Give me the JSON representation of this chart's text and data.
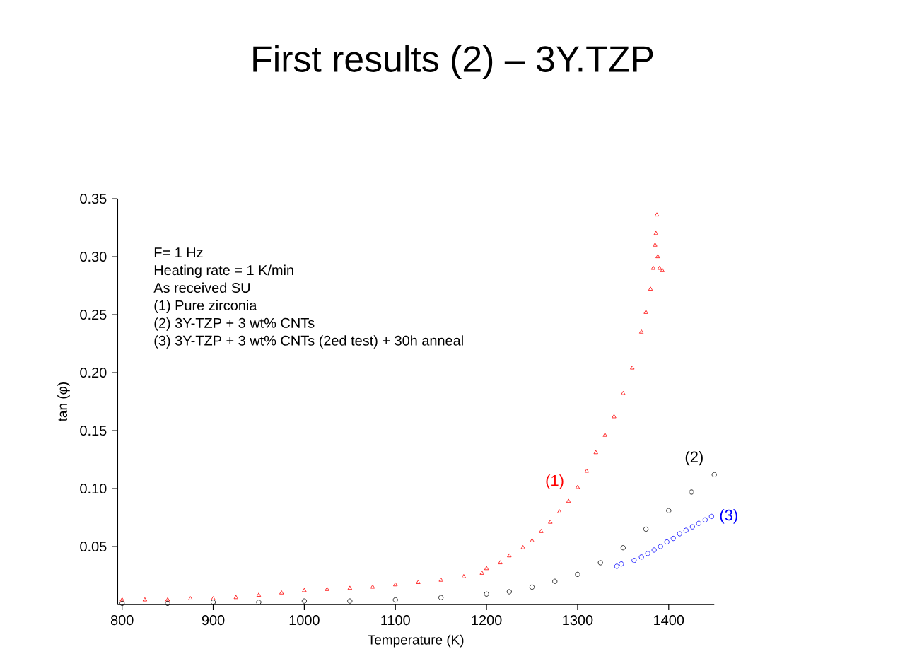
{
  "chart_data": {
    "type": "scatter",
    "title": "First results (2) – 3Y.TZP",
    "xlabel": "Temperature (K)",
    "ylabel": "tan (φ)",
    "xlim": [
      795,
      1450
    ],
    "ylim": [
      0,
      0.35
    ],
    "xticks": [
      800,
      900,
      1000,
      1100,
      1200,
      1300,
      1400
    ],
    "yticks": [
      0.05,
      {
        "value": 0.1,
        "label": "0.10"
      },
      0.15,
      {
        "value": 0.2,
        "label": "0.20"
      },
      0.25,
      {
        "value": 0.3,
        "label": "0.30"
      },
      0.35
    ],
    "grid": false,
    "legend": false,
    "marker": "circle",
    "annotations": [
      "F= 1 Hz",
      "Heating rate = 1 K/min",
      "As received SU",
      "(1) Pure zirconia",
      "(2) 3Y-TZP +  3 wt% CNTs",
      "(3) 3Y-TZP +  3 wt% CNTs (2ed test) + 30h anneal"
    ],
    "series": [
      {
        "name": "(1)",
        "color": "#ff0000",
        "marker": "triangle",
        "x": [
          800,
          825,
          850,
          875,
          900,
          925,
          950,
          975,
          1000,
          1025,
          1050,
          1075,
          1100,
          1125,
          1150,
          1175,
          1195,
          1200,
          1215,
          1225,
          1240,
          1250,
          1260,
          1270,
          1280,
          1290,
          1300,
          1310,
          1320,
          1330,
          1340,
          1350,
          1360,
          1370,
          1375,
          1380,
          1383,
          1385,
          1386,
          1387,
          1388,
          1390,
          1393
        ],
        "values": [
          0.004,
          0.004,
          0.004,
          0.005,
          0.005,
          0.006,
          0.008,
          0.01,
          0.012,
          0.013,
          0.014,
          0.015,
          0.017,
          0.019,
          0.021,
          0.024,
          0.027,
          0.031,
          0.036,
          0.042,
          0.049,
          0.055,
          0.063,
          0.071,
          0.08,
          0.089,
          0.101,
          0.115,
          0.131,
          0.146,
          0.162,
          0.182,
          0.204,
          0.235,
          0.252,
          0.272,
          0.29,
          0.31,
          0.32,
          0.336,
          0.3,
          0.29,
          0.288
        ]
      },
      {
        "name": "(2)",
        "color": "#000000",
        "x": [
          800,
          850,
          900,
          950,
          1000,
          1050,
          1100,
          1150,
          1200,
          1225,
          1250,
          1275,
          1300,
          1325,
          1350,
          1375,
          1400,
          1425,
          1450
        ],
        "values": [
          0.001,
          0.001,
          0.002,
          0.002,
          0.003,
          0.003,
          0.004,
          0.006,
          0.009,
          0.011,
          0.015,
          0.02,
          0.026,
          0.036,
          0.049,
          0.065,
          0.081,
          0.097,
          0.112
        ]
      },
      {
        "name": "(3)",
        "color": "#0000ff",
        "x": [
          1343,
          1348,
          1362,
          1370,
          1377,
          1384,
          1391,
          1398,
          1405,
          1412,
          1419,
          1426,
          1433,
          1440,
          1447
        ],
        "values": [
          0.033,
          0.035,
          0.038,
          0.041,
          0.044,
          0.047,
          0.05,
          0.054,
          0.057,
          0.061,
          0.064,
          0.067,
          0.07,
          0.073,
          0.076
        ]
      }
    ]
  }
}
